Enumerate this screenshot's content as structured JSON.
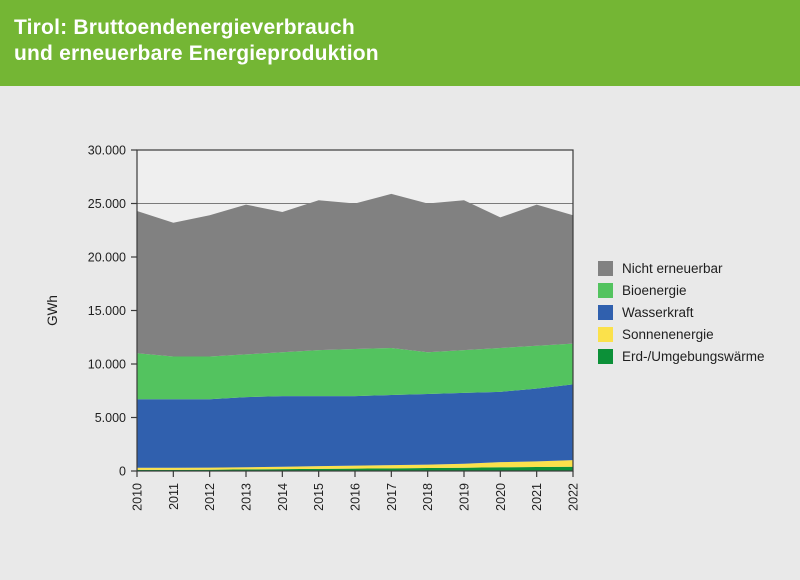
{
  "header": {
    "title_line1": "Tirol: Bruttoendenergieverbrauch",
    "title_line2": "und erneuerbare Energieproduktion",
    "background": "#74b634",
    "text_color": "#ffffff"
  },
  "chart_data": {
    "type": "area",
    "stacked": true,
    "title": "",
    "xlabel": "",
    "ylabel": "GWh",
    "ylim": [
      0,
      30000
    ],
    "ytick_step": 5000,
    "ytick_labels": [
      "0",
      "5.000",
      "10.000",
      "15.000",
      "20.000",
      "25.000",
      "30.000"
    ],
    "grid": "horizontal",
    "legend_position": "right",
    "categories": [
      "2010",
      "2011",
      "2012",
      "2013",
      "2014",
      "2015",
      "2016",
      "2017",
      "2018",
      "2019",
      "2020",
      "2021",
      "2022"
    ],
    "series": [
      {
        "name": "Erd-/Umgebungswärme",
        "key": "erd-umgebungswaerme",
        "color": "#0c9038",
        "values": [
          100,
          100,
          120,
          150,
          170,
          200,
          220,
          250,
          280,
          300,
          350,
          370,
          400
        ]
      },
      {
        "name": "Sonnenenergie",
        "key": "sonnenenergie",
        "color": "#fbe14b",
        "values": [
          200,
          200,
          200,
          200,
          230,
          250,
          280,
          300,
          320,
          380,
          480,
          530,
          620
        ]
      },
      {
        "name": "Wasserkraft",
        "key": "wasserkraft",
        "color": "#3060ae",
        "values": [
          6400,
          6400,
          6380,
          6550,
          6600,
          6550,
          6500,
          6550,
          6600,
          6620,
          6570,
          6800,
          7080
        ]
      },
      {
        "name": "Bioenergie",
        "key": "bioenergie",
        "color": "#53c35f",
        "values": [
          4300,
          4000,
          4000,
          4000,
          4100,
          4300,
          4400,
          4400,
          3900,
          4000,
          4100,
          4000,
          3800
        ]
      },
      {
        "name": "Nicht erneuerbar",
        "key": "nicht-erneuerbar",
        "color": "#818181",
        "values": [
          13300,
          12500,
          13200,
          14000,
          13100,
          14000,
          13600,
          14400,
          13900,
          14000,
          12200,
          13200,
          12000
        ]
      }
    ]
  },
  "colors": {
    "page_background": "#e9e9e9",
    "plot_background": "#efefef",
    "frame": "#3a3a3a",
    "gridline": "#7a7a7a",
    "text": "#1f1f1f"
  }
}
